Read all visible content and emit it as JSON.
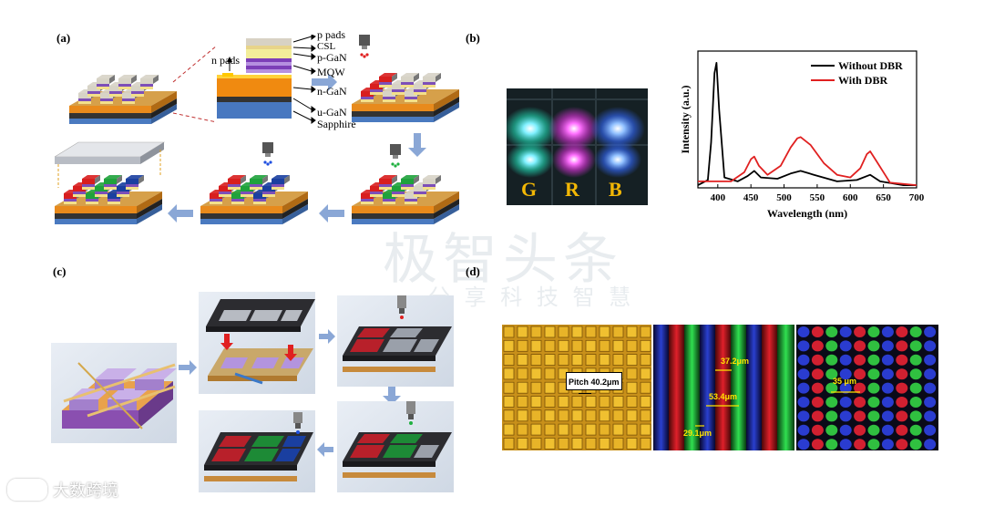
{
  "panels": {
    "a": {
      "label": "(a)",
      "layers": [
        "p pads",
        "CSL",
        "p-GaN",
        "MQW",
        "n-GaN",
        "u-GaN",
        "Sapphire"
      ],
      "n_pads": "n pads"
    },
    "b": {
      "label": "(b)",
      "photo_letters": [
        "G",
        "R",
        "B"
      ]
    },
    "c": {
      "label": "(c)"
    },
    "d": {
      "label": "(d)",
      "pitch": "Pitch 40.2μm",
      "dim1": "37.2μm",
      "dim2": "53.4μm",
      "dim3": "29.1μm",
      "dim4": "35 μm"
    }
  },
  "chart_data": {
    "type": "line",
    "xlabel": "Wavelength (nm)",
    "ylabel": "Intensity (a.u.)",
    "xlim": [
      370,
      700
    ],
    "ylim": [
      0,
      1.05
    ],
    "xticks": [
      400,
      450,
      500,
      550,
      600,
      650,
      700
    ],
    "legend_position": "top-right",
    "grid": false,
    "series": [
      {
        "name": "Without DBR",
        "color": "#000000",
        "x": [
          370,
          385,
          390,
          395,
          398,
          402,
          410,
          430,
          445,
          455,
          465,
          490,
          510,
          525,
          545,
          580,
          610,
          630,
          645,
          680,
          700
        ],
        "y": [
          0.02,
          0.06,
          0.35,
          0.88,
          0.96,
          0.6,
          0.08,
          0.05,
          0.09,
          0.13,
          0.08,
          0.07,
          0.11,
          0.13,
          0.1,
          0.05,
          0.06,
          0.1,
          0.05,
          0.02,
          0.02
        ]
      },
      {
        "name": "With DBR",
        "color": "#e02020",
        "x": [
          370,
          390,
          400,
          420,
          440,
          450,
          455,
          462,
          475,
          495,
          510,
          520,
          525,
          540,
          560,
          580,
          600,
          615,
          625,
          630,
          640,
          660,
          700
        ],
        "y": [
          0.05,
          0.05,
          0.05,
          0.05,
          0.12,
          0.22,
          0.24,
          0.17,
          0.1,
          0.17,
          0.31,
          0.38,
          0.39,
          0.33,
          0.19,
          0.1,
          0.08,
          0.15,
          0.26,
          0.28,
          0.2,
          0.04,
          0.02
        ]
      }
    ]
  },
  "watermarks": {
    "cn_big": "极智头条",
    "cn_small": "分 享 科 技 智 慧",
    "footer": "大数跨境"
  },
  "colors": {
    "red_pixel": "#d81e1e",
    "green_pixel": "#1fa23c",
    "blue_pixel": "#1a3fa0",
    "arrow": "#8aa7d6"
  }
}
